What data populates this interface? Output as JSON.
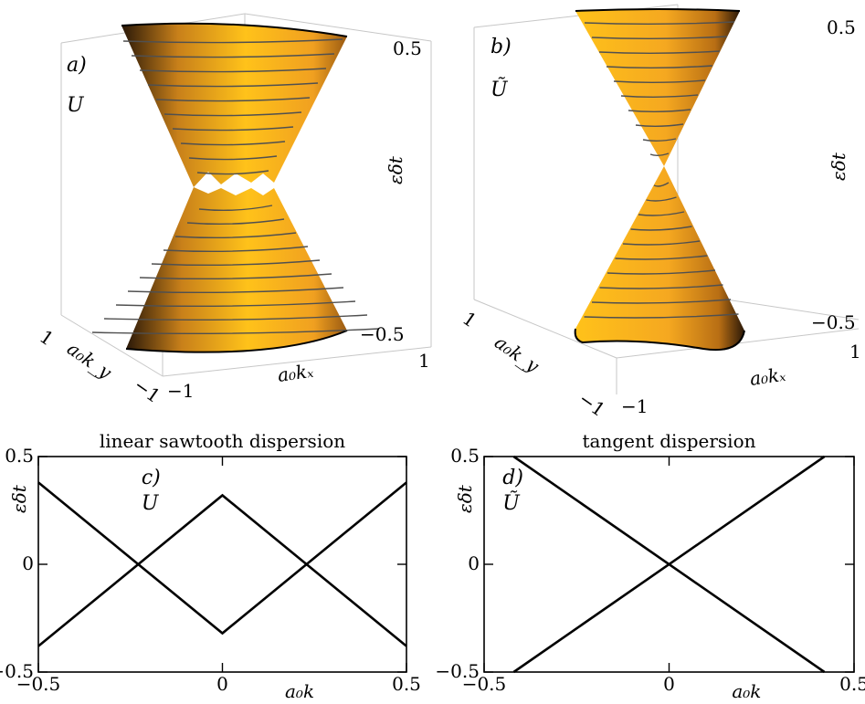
{
  "panels3d": [
    {
      "tag": "a)",
      "operator": "U",
      "zlabel": "εδt",
      "xlabel": "a₀kₓ",
      "ylabel": "a₀k_y",
      "ticks": {
        "z_top": "0.5",
        "z_bottom": "−0.5",
        "x_min": "−1",
        "x_max": "1",
        "y_max": "1",
        "y_min": "−1"
      }
    },
    {
      "tag": "b)",
      "operator": "Ũ",
      "zlabel": "εδt",
      "xlabel": "a₀kₓ",
      "ylabel": "a₀k_y",
      "ticks": {
        "z_top": "0.5",
        "z_bottom": "−0.5",
        "x_min": "−1",
        "x_max": "1",
        "y_max": "1",
        "y_min": "−1"
      }
    }
  ],
  "surface_colors": {
    "light": "#ffc21a",
    "mid": "#f0a020",
    "dark": "#3a2008",
    "contour": "#505050"
  },
  "chart_data": [
    {
      "type": "line",
      "title": "linear sawtooth dispersion",
      "tag": "c)",
      "operator": "U",
      "xlabel": "a₀k",
      "ylabel": "εδt",
      "xlim": [
        -0.5,
        0.5
      ],
      "ylim": [
        -0.5,
        0.5
      ],
      "xticks": [
        "−0.5",
        "0",
        "0.5"
      ],
      "yticks": [
        "0.5",
        "0",
        "−0.5"
      ],
      "series": [
        {
          "x": [
            -0.5,
            0.0,
            0.5
          ],
          "y": [
            0.38,
            -0.32,
            0.38
          ]
        },
        {
          "x": [
            -0.5,
            0.0,
            0.5
          ],
          "y": [
            -0.38,
            0.32,
            -0.38
          ]
        }
      ]
    },
    {
      "type": "line",
      "title": "tangent dispersion",
      "tag": "d)",
      "operator": "Ũ",
      "xlabel": "a₀k",
      "ylabel": "εδt",
      "xlim": [
        -0.5,
        0.5
      ],
      "ylim": [
        -0.5,
        0.5
      ],
      "xticks": [
        "−0.5",
        "0",
        "0.5"
      ],
      "yticks": [
        "0.5",
        "0",
        "−0.5"
      ],
      "series": [
        {
          "x": [
            -0.42,
            0.42
          ],
          "y": [
            0.5,
            -0.5
          ]
        },
        {
          "x": [
            -0.42,
            0.42
          ],
          "y": [
            -0.5,
            0.5
          ]
        }
      ]
    }
  ]
}
